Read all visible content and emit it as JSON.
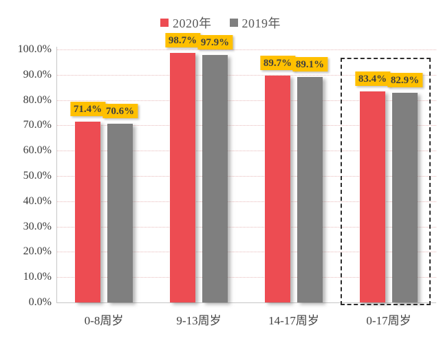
{
  "chart_data": {
    "type": "bar",
    "title": "",
    "categories": [
      "0-8周岁",
      "9-13周岁",
      "14-17周岁",
      "0-17周岁"
    ],
    "series": [
      {
        "name": "2020年",
        "color": "#ED4C52",
        "values": [
          71.4,
          98.7,
          89.7,
          83.4
        ],
        "labels": [
          "71.4%",
          "98.7%",
          "89.7%",
          "83.4%"
        ]
      },
      {
        "name": "2019年",
        "color": "#7F7F7F",
        "values": [
          70.6,
          97.9,
          89.1,
          82.9
        ],
        "labels": [
          "70.6%",
          "97.9%",
          "89.1%",
          "82.9%"
        ]
      }
    ],
    "xlabel": "",
    "ylabel": "",
    "ylim": [
      0,
      100
    ],
    "ytick_step": 10,
    "ytick_labels": [
      "0.0%",
      "10.0%",
      "20.0%",
      "30.0%",
      "40.0%",
      "50.0%",
      "60.0%",
      "70.0%",
      "80.0%",
      "90.0%",
      "100.0%"
    ],
    "grid": true,
    "gridline_color": "#e7b8b8",
    "legend_position": "top",
    "label_bg": "#FFC000",
    "label_color": "#3f3f3f",
    "highlighted_category": "0-17周岁"
  }
}
